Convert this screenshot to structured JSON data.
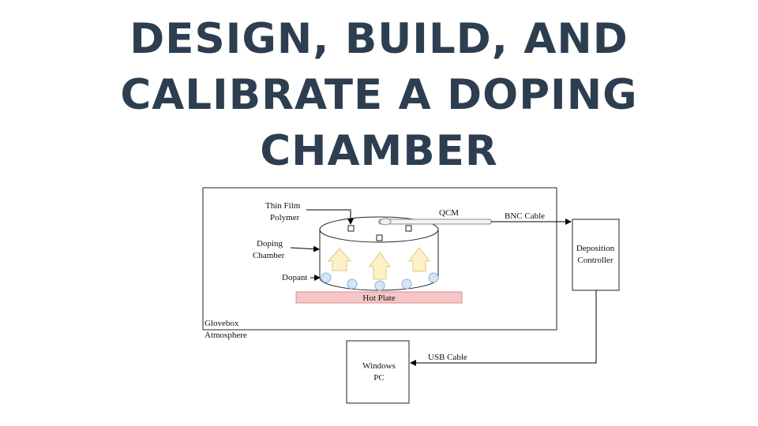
{
  "title": {
    "line1": "DESIGN, BUILD, AND",
    "line2": "CALIBRATE A DOPING",
    "line3": "CHAMBER"
  },
  "diagram": {
    "labels": {
      "thin_film_line1": "Thin Film",
      "thin_film_line2": "Polymer",
      "qcm": "QCM",
      "bnc_cable": "BNC Cable",
      "doping_line1": "Doping",
      "doping_line2": "Chamber",
      "dopant": "Dopant",
      "hot_plate": "Hot Plate",
      "glovebox_line1": "Glovebox",
      "glovebox_line2": "Atmosphere",
      "deposition_line1": "Deposition",
      "deposition_line2": "Controller",
      "usb_cable": "USB Cable",
      "windows_line1": "Windows",
      "windows_line2": "PC"
    },
    "colors": {
      "hot_plate_fill": "#f6c6c6",
      "hot_plate_stroke": "#d98c8c",
      "dopant_fill": "#d6e4f7",
      "dopant_stroke": "#8fb0d9",
      "arrow_fill": "#fdf1c8",
      "arrow_stroke": "#e3c77a",
      "title_color": "#2d3e50"
    }
  }
}
